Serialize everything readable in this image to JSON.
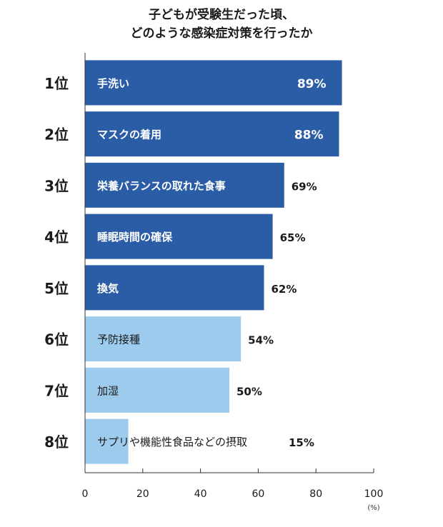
{
  "chart_data": {
    "type": "bar",
    "orientation": "horizontal",
    "title_lines": [
      "子どもが受験生だった頃、",
      "どのような感染症対策を行ったか"
    ],
    "categories": [
      "1位",
      "2位",
      "3位",
      "4位",
      "5位",
      "6位",
      "7位",
      "8位"
    ],
    "bar_labels": [
      "手洗い",
      "マスクの着用",
      "栄養バランスの取れた食事",
      "睡眠時間の確保",
      "換気",
      "予防接種",
      "加湿",
      "サプリや機能性食品などの摂取"
    ],
    "values": [
      89,
      88,
      69,
      65,
      62,
      54,
      50,
      15
    ],
    "value_labels": [
      "89%",
      "88%",
      "69%",
      "65%",
      "62%",
      "54%",
      "50%",
      "15%"
    ],
    "xlim": [
      0,
      100
    ],
    "xticks": [
      "0",
      "20",
      "40",
      "60",
      "80",
      "100"
    ],
    "xunit": "(%)",
    "colors": {
      "top5": "#2a5da6",
      "rest": "#9ccbee",
      "axis": "#333333",
      "label_dark": "#ffffff",
      "label_light": "#1a1a1a"
    }
  }
}
